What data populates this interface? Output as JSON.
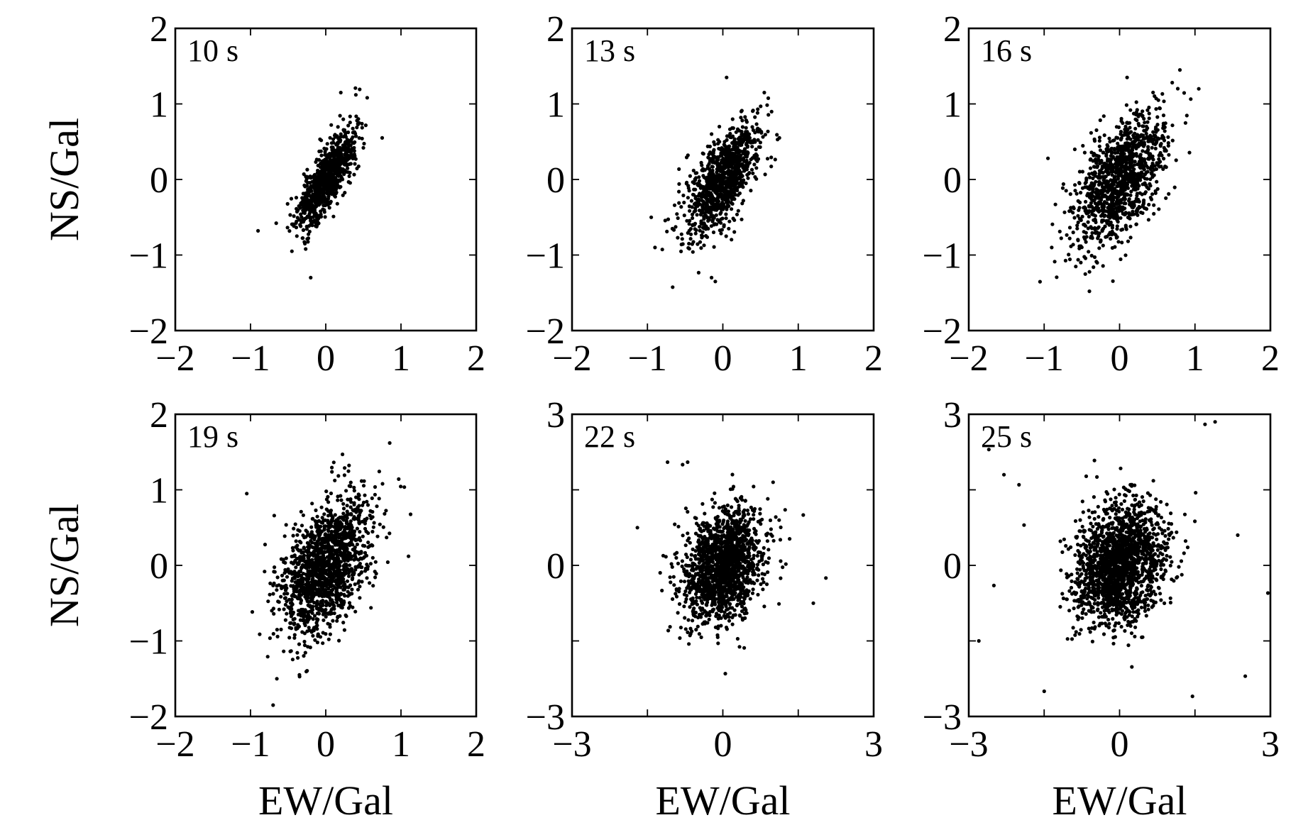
{
  "chart_data": [
    {
      "type": "scatter",
      "annotation": "10 s",
      "xlabel": "",
      "ylabel": "NS/Gal",
      "xlim": [
        -2,
        2
      ],
      "ylim": [
        -2,
        2
      ],
      "xticks": [
        -2,
        -1,
        0,
        1,
        2
      ],
      "yticks": [
        -2,
        -1,
        0,
        1,
        2
      ],
      "xtick_labels": [
        "−2",
        "−1",
        "0",
        "1",
        "2"
      ],
      "ytick_labels": [
        "−2",
        "−1",
        "0",
        "1",
        "2"
      ],
      "distribution": {
        "n": 900,
        "x_std": 0.19,
        "y_std": 0.32,
        "corr": 0.78,
        "seed": 11
      },
      "points": [
        [
          -0.45,
          -0.95
        ],
        [
          -0.2,
          -1.3
        ],
        [
          0.2,
          1.15
        ],
        [
          0.4,
          1.12
        ],
        [
          0.75,
          0.55
        ],
        [
          -0.9,
          -0.68
        ]
      ]
    },
    {
      "type": "scatter",
      "annotation": "13 s",
      "xlabel": "",
      "ylabel": "",
      "xlim": [
        -2,
        2
      ],
      "ylim": [
        -2,
        2
      ],
      "xticks": [
        -2,
        -1,
        0,
        1,
        2
      ],
      "yticks": [
        -2,
        -1,
        0,
        1,
        2
      ],
      "xtick_labels": [
        "−2",
        "−1",
        "0",
        "1",
        "2"
      ],
      "ytick_labels": [
        "−2",
        "−1",
        "0",
        "1",
        "2"
      ],
      "distribution": {
        "n": 1000,
        "x_std": 0.25,
        "y_std": 0.38,
        "corr": 0.68,
        "seed": 13
      },
      "points": [
        [
          0.05,
          1.35
        ],
        [
          -0.15,
          -1.3
        ],
        [
          -0.1,
          -1.35
        ],
        [
          0.55,
          1.15
        ],
        [
          0.75,
          0.55
        ],
        [
          -0.95,
          -0.5
        ],
        [
          -0.9,
          -0.9
        ]
      ]
    },
    {
      "type": "scatter",
      "annotation": "16 s",
      "xlabel": "",
      "ylabel": "",
      "xlim": [
        -2,
        2
      ],
      "ylim": [
        -2,
        2
      ],
      "xticks": [
        -2,
        -1,
        0,
        1,
        2
      ],
      "yticks": [
        -2,
        -1,
        0,
        1,
        2
      ],
      "xtick_labels": [
        "−2",
        "−1",
        "0",
        "1",
        "2"
      ],
      "ytick_labels": [
        "−2",
        "−1",
        "0",
        "1",
        "2"
      ],
      "distribution": {
        "n": 1200,
        "x_std": 0.3,
        "y_std": 0.42,
        "corr": 0.55,
        "seed": 16
      },
      "points": [
        [
          0.8,
          1.45
        ],
        [
          -0.4,
          -1.48
        ],
        [
          1.05,
          1.2
        ],
        [
          -0.95,
          0.28
        ],
        [
          0.1,
          1.35
        ],
        [
          -0.9,
          -0.9
        ]
      ]
    },
    {
      "type": "scatter",
      "annotation": "19 s",
      "xlabel": "EW/Gal",
      "ylabel": "NS/Gal",
      "xlim": [
        -2,
        2
      ],
      "ylim": [
        -2,
        2
      ],
      "xticks": [
        -2,
        -1,
        0,
        1,
        2
      ],
      "yticks": [
        -2,
        -1,
        0,
        1,
        2
      ],
      "xtick_labels": [
        "−2",
        "−1",
        "0",
        "1",
        "2"
      ],
      "ytick_labels": [
        "−2",
        "−1",
        "0",
        "1",
        "2"
      ],
      "distribution": {
        "n": 1500,
        "x_std": 0.3,
        "y_std": 0.45,
        "corr": 0.45,
        "seed": 19
      },
      "points": [
        [
          -1.05,
          0.95
        ],
        [
          -0.7,
          -1.85
        ],
        [
          0.85,
          1.62
        ],
        [
          1.1,
          0.12
        ],
        [
          -0.65,
          -1.5
        ],
        [
          -0.35,
          -1.45
        ]
      ]
    },
    {
      "type": "scatter",
      "annotation": "22 s",
      "xlabel": "EW/Gal",
      "ylabel": "",
      "xlim": [
        -3,
        3
      ],
      "ylim": [
        -3,
        3
      ],
      "xticks": [
        -3,
        -1.5,
        0,
        1.5,
        3
      ],
      "yticks": [
        -3,
        -1.5,
        0,
        1.5,
        3
      ],
      "xtick_labels": [
        "−3",
        "",
        "0",
        "",
        "3"
      ],
      "ytick_labels": [
        "−3",
        "",
        "0",
        "",
        "3"
      ],
      "distribution": {
        "n": 1600,
        "x_std": 0.4,
        "y_std": 0.55,
        "corr": 0.3,
        "seed": 22
      },
      "points": [
        [
          -1.1,
          2.05
        ],
        [
          -0.8,
          2.0
        ],
        [
          1.0,
          1.65
        ],
        [
          2.05,
          -0.25
        ],
        [
          1.8,
          -0.75
        ],
        [
          0.05,
          -2.15
        ],
        [
          -0.7,
          2.05
        ],
        [
          -1.7,
          0.75
        ],
        [
          1.6,
          1.0
        ]
      ]
    },
    {
      "type": "scatter",
      "annotation": "25 s",
      "xlabel": "EW/Gal",
      "ylabel": "",
      "xlim": [
        -3,
        3
      ],
      "ylim": [
        -3,
        3
      ],
      "xticks": [
        -3,
        -1.5,
        0,
        1.5,
        3
      ],
      "yticks": [
        -3,
        -1.5,
        0,
        1.5,
        3
      ],
      "xtick_labels": [
        "−3",
        "",
        "0",
        "",
        "3"
      ],
      "ytick_labels": [
        "−3",
        "",
        "0",
        "",
        "3"
      ],
      "distribution": {
        "n": 1800,
        "x_std": 0.45,
        "y_std": 0.6,
        "corr": 0.2,
        "seed": 25
      },
      "points": [
        [
          1.9,
          2.85
        ],
        [
          1.7,
          2.8
        ],
        [
          -2.6,
          2.3
        ],
        [
          -2.8,
          -1.5
        ],
        [
          1.45,
          -2.6
        ],
        [
          2.5,
          -2.2
        ],
        [
          -1.5,
          -2.5
        ],
        [
          2.95,
          -0.55
        ],
        [
          -2.3,
          1.8
        ],
        [
          -2.0,
          1.6
        ],
        [
          2.35,
          0.6
        ],
        [
          -1.9,
          0.8
        ],
        [
          -2.5,
          -0.4
        ]
      ]
    }
  ]
}
